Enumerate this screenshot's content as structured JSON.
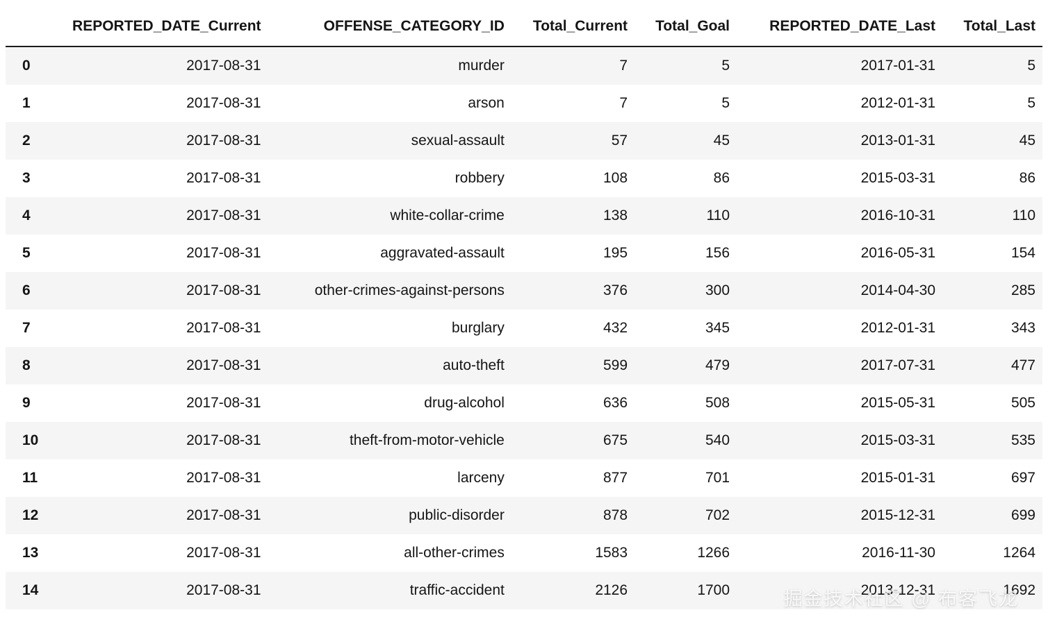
{
  "chart_data": {
    "type": "table",
    "index": [
      "0",
      "1",
      "2",
      "3",
      "4",
      "5",
      "6",
      "7",
      "8",
      "9",
      "10",
      "11",
      "12",
      "13",
      "14"
    ],
    "columns": [
      "REPORTED_DATE_Current",
      "OFFENSE_CATEGORY_ID",
      "Total_Current",
      "Total_Goal",
      "REPORTED_DATE_Last",
      "Total_Last"
    ],
    "rows": [
      [
        "2017-08-31",
        "murder",
        7,
        5,
        "2017-01-31",
        5
      ],
      [
        "2017-08-31",
        "arson",
        7,
        5,
        "2012-01-31",
        5
      ],
      [
        "2017-08-31",
        "sexual-assault",
        57,
        45,
        "2013-01-31",
        45
      ],
      [
        "2017-08-31",
        "robbery",
        108,
        86,
        "2015-03-31",
        86
      ],
      [
        "2017-08-31",
        "white-collar-crime",
        138,
        110,
        "2016-10-31",
        110
      ],
      [
        "2017-08-31",
        "aggravated-assault",
        195,
        156,
        "2016-05-31",
        154
      ],
      [
        "2017-08-31",
        "other-crimes-against-persons",
        376,
        300,
        "2014-04-30",
        285
      ],
      [
        "2017-08-31",
        "burglary",
        432,
        345,
        "2012-01-31",
        343
      ],
      [
        "2017-08-31",
        "auto-theft",
        599,
        479,
        "2017-07-31",
        477
      ],
      [
        "2017-08-31",
        "drug-alcohol",
        636,
        508,
        "2015-05-31",
        505
      ],
      [
        "2017-08-31",
        "theft-from-motor-vehicle",
        675,
        540,
        "2015-03-31",
        535
      ],
      [
        "2017-08-31",
        "larceny",
        877,
        701,
        "2015-01-31",
        697
      ],
      [
        "2017-08-31",
        "public-disorder",
        878,
        702,
        "2015-12-31",
        699
      ],
      [
        "2017-08-31",
        "all-other-crimes",
        1583,
        1266,
        "2016-11-30",
        1264
      ],
      [
        "2017-08-31",
        "traffic-accident",
        2126,
        1700,
        "2013-12-31",
        1692
      ]
    ],
    "title": "",
    "legend": "none",
    "grid": "row-striping",
    "stripe_color": "#f5f5f5",
    "header_border_color": "#1b1b1b"
  },
  "watermark": {
    "text": "掘金技术社区 @ 布客飞龙"
  }
}
